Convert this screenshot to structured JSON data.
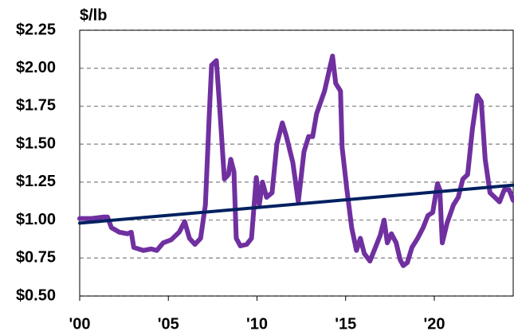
{
  "chart_data": {
    "type": "line",
    "y_axis_label": "$/lb",
    "xlim": [
      2000,
      2024.45
    ],
    "xticks": [
      {
        "value": 2000,
        "label": "'00"
      },
      {
        "value": 2005,
        "label": "'05"
      },
      {
        "value": 2010,
        "label": "'10"
      },
      {
        "value": 2015,
        "label": "'15"
      },
      {
        "value": 2020,
        "label": "'20"
      }
    ],
    "ylim": [
      0.5,
      2.25
    ],
    "yticks": [
      {
        "value": 0.5,
        "label": "$0.50"
      },
      {
        "value": 0.75,
        "label": "$0.75"
      },
      {
        "value": 1.0,
        "label": "$1.00"
      },
      {
        "value": 1.25,
        "label": "$1.25"
      },
      {
        "value": 1.5,
        "label": "$1.50"
      },
      {
        "value": 1.75,
        "label": "$1.75"
      },
      {
        "value": 2.0,
        "label": "$2.00"
      },
      {
        "value": 2.25,
        "label": "$2.25"
      }
    ],
    "grid": true,
    "series": [
      {
        "color": "#7030a0",
        "x": [
          2000,
          2000.67,
          2001.35,
          2001.57,
          2001.79,
          2002.24,
          2002.69,
          2002.91,
          2003.05,
          2003.59,
          2004.04,
          2004.35,
          2004.71,
          2005.16,
          2005.61,
          2005.92,
          2006.19,
          2006.5,
          2006.82,
          2007.09,
          2007.31,
          2007.44,
          2007.71,
          2007.89,
          2008.16,
          2008.39,
          2008.52,
          2008.7,
          2008.83,
          2009.06,
          2009.42,
          2009.69,
          2009.96,
          2010.13,
          2010.31,
          2010.54,
          2010.85,
          2011.12,
          2011.43,
          2011.66,
          2012.02,
          2012.33,
          2012.65,
          2012.91,
          2013.14,
          2013.36,
          2013.81,
          2014.26,
          2014.44,
          2014.71,
          2014.8,
          2015.07,
          2015.34,
          2015.61,
          2015.83,
          2016.05,
          2016.37,
          2016.68,
          2016.95,
          2017.17,
          2017.35,
          2017.58,
          2017.85,
          2018.07,
          2018.25,
          2018.48,
          2018.74,
          2019.06,
          2019.37,
          2019.64,
          2019.91,
          2020.18,
          2020.31,
          2020.45,
          2020.72,
          2021.08,
          2021.35,
          2021.61,
          2021.88,
          2022.15,
          2022.42,
          2022.65,
          2022.87,
          2023.14,
          2023.41,
          2023.68,
          2023.95,
          2024.22,
          2024.45
        ],
        "values": [
          1.01,
          1.01,
          1.02,
          1.02,
          0.95,
          0.92,
          0.91,
          0.92,
          0.82,
          0.8,
          0.81,
          0.8,
          0.85,
          0.87,
          0.92,
          0.99,
          0.88,
          0.84,
          0.88,
          1.1,
          1.7,
          2.02,
          2.05,
          1.75,
          1.27,
          1.3,
          1.4,
          1.32,
          0.88,
          0.83,
          0.84,
          0.88,
          1.28,
          1.1,
          1.25,
          1.15,
          1.18,
          1.5,
          1.64,
          1.55,
          1.38,
          1.12,
          1.45,
          1.55,
          1.55,
          1.7,
          1.85,
          2.08,
          1.9,
          1.85,
          1.48,
          1.2,
          0.95,
          0.8,
          0.88,
          0.78,
          0.73,
          0.82,
          0.9,
          1.0,
          0.85,
          0.91,
          0.85,
          0.74,
          0.7,
          0.72,
          0.82,
          0.88,
          0.95,
          1.03,
          1.05,
          1.24,
          1.2,
          0.85,
          0.98,
          1.1,
          1.15,
          1.27,
          1.3,
          1.6,
          1.82,
          1.78,
          1.4,
          1.18,
          1.15,
          1.12,
          1.2,
          1.2,
          1.13
        ]
      },
      {
        "color": "#002060",
        "x": [
          2000,
          2024.45
        ],
        "values": [
          0.98,
          1.23
        ]
      }
    ]
  }
}
